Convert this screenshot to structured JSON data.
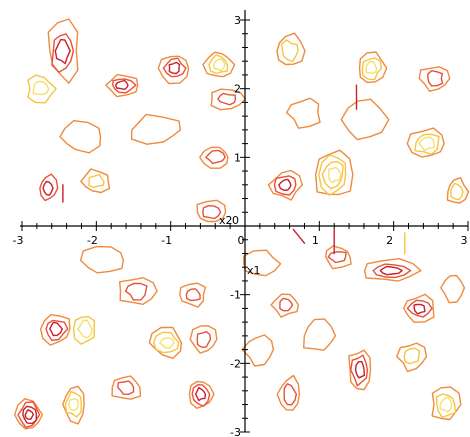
{
  "chart_data": {
    "type": "contour",
    "xlabel": "x1",
    "ylabel": "x2",
    "xlim": [
      -3,
      3
    ],
    "ylim": [
      -3,
      3
    ],
    "x_ticks": [
      -3,
      -2,
      -1,
      0,
      1,
      2,
      3
    ],
    "y_ticks": [
      -3,
      -2,
      -1,
      0,
      1,
      2,
      3
    ],
    "x_tick_labels": [
      "-3",
      "-2",
      "-1",
      "0",
      "1",
      "2",
      "3"
    ],
    "y_tick_labels": [
      "-3",
      "-2",
      "-1",
      "0",
      "1",
      "2",
      "3"
    ],
    "minor_ticks_per_unit": 5,
    "grid": false,
    "level_colors": [
      "#f08a3c",
      "#e8503a",
      "#c8202a",
      "#f5c542",
      "#f7e06a"
    ],
    "features": [
      {
        "x": -2.45,
        "y": 2.55,
        "rx": 0.22,
        "ry": 0.42,
        "levels": [
          0,
          1,
          2
        ]
      },
      {
        "x": -2.75,
        "y": 2.0,
        "rx": 0.18,
        "ry": 0.18,
        "levels": [
          3,
          4
        ]
      },
      {
        "x": -1.65,
        "y": 2.05,
        "rx": 0.22,
        "ry": 0.16,
        "levels": [
          0,
          1,
          2
        ]
      },
      {
        "x": -0.95,
        "y": 2.3,
        "rx": 0.2,
        "ry": 0.2,
        "levels": [
          0,
          1,
          2
        ]
      },
      {
        "x": -0.35,
        "y": 2.35,
        "rx": 0.18,
        "ry": 0.2,
        "levels": [
          0,
          3,
          4
        ]
      },
      {
        "x": -0.25,
        "y": 1.85,
        "rx": 0.22,
        "ry": 0.14,
        "levels": [
          0,
          1
        ]
      },
      {
        "x": 0.6,
        "y": 2.55,
        "rx": 0.2,
        "ry": 0.25,
        "levels": [
          0,
          3
        ]
      },
      {
        "x": 1.7,
        "y": 2.3,
        "rx": 0.18,
        "ry": 0.22,
        "levels": [
          0,
          3,
          4
        ]
      },
      {
        "x": 2.55,
        "y": 2.15,
        "rx": 0.2,
        "ry": 0.18,
        "levels": [
          0,
          1
        ]
      },
      {
        "x": 2.45,
        "y": 1.2,
        "rx": 0.25,
        "ry": 0.22,
        "levels": [
          0,
          3,
          4
        ]
      },
      {
        "x": 2.85,
        "y": 0.5,
        "rx": 0.15,
        "ry": 0.2,
        "levels": [
          0,
          3
        ]
      },
      {
        "x": 1.2,
        "y": 0.75,
        "rx": 0.25,
        "ry": 0.38,
        "levels": [
          0,
          3,
          3,
          4
        ]
      },
      {
        "x": 0.55,
        "y": 0.6,
        "rx": 0.2,
        "ry": 0.2,
        "levels": [
          0,
          1,
          2
        ]
      },
      {
        "x": -0.4,
        "y": 1.0,
        "rx": 0.2,
        "ry": 0.16,
        "levels": [
          0,
          1
        ]
      },
      {
        "x": -2.65,
        "y": 0.55,
        "rx": 0.12,
        "ry": 0.18,
        "levels": [
          1,
          2
        ]
      },
      {
        "x": -2.0,
        "y": 0.65,
        "rx": 0.2,
        "ry": 0.16,
        "levels": [
          0,
          3
        ]
      },
      {
        "x": -0.45,
        "y": 0.2,
        "rx": 0.2,
        "ry": 0.16,
        "levels": [
          0,
          1
        ]
      },
      {
        "x": 1.95,
        "y": -0.65,
        "rx": 0.35,
        "ry": 0.16,
        "levels": [
          0,
          1,
          2
        ]
      },
      {
        "x": 1.25,
        "y": -0.45,
        "rx": 0.2,
        "ry": 0.16,
        "levels": [
          0,
          1
        ]
      },
      {
        "x": 2.35,
        "y": -1.2,
        "rx": 0.2,
        "ry": 0.18,
        "levels": [
          0,
          1,
          2
        ]
      },
      {
        "x": -2.55,
        "y": -1.5,
        "rx": 0.2,
        "ry": 0.22,
        "levels": [
          0,
          1,
          2
        ]
      },
      {
        "x": -2.15,
        "y": -1.5,
        "rx": 0.15,
        "ry": 0.2,
        "levels": [
          3,
          4
        ]
      },
      {
        "x": -1.45,
        "y": -0.95,
        "rx": 0.25,
        "ry": 0.2,
        "levels": [
          0,
          1
        ]
      },
      {
        "x": -1.05,
        "y": -1.7,
        "rx": 0.22,
        "ry": 0.2,
        "levels": [
          0,
          3,
          4
        ]
      },
      {
        "x": -0.55,
        "y": -1.65,
        "rx": 0.16,
        "ry": 0.2,
        "levels": [
          0,
          1
        ]
      },
      {
        "x": -0.7,
        "y": -1.0,
        "rx": 0.18,
        "ry": 0.16,
        "levels": [
          0,
          1
        ]
      },
      {
        "x": 0.55,
        "y": -1.15,
        "rx": 0.18,
        "ry": 0.16,
        "levels": [
          0,
          1
        ]
      },
      {
        "x": 1.55,
        "y": -2.1,
        "rx": 0.16,
        "ry": 0.3,
        "levels": [
          0,
          1,
          2
        ]
      },
      {
        "x": 2.7,
        "y": -2.6,
        "rx": 0.2,
        "ry": 0.25,
        "levels": [
          0,
          3,
          4
        ]
      },
      {
        "x": 2.25,
        "y": -1.9,
        "rx": 0.18,
        "ry": 0.2,
        "levels": [
          0,
          3
        ]
      },
      {
        "x": -2.9,
        "y": -2.75,
        "rx": 0.18,
        "ry": 0.22,
        "levels": [
          0,
          1,
          2,
          2
        ]
      },
      {
        "x": -2.3,
        "y": -2.6,
        "rx": 0.15,
        "ry": 0.25,
        "levels": [
          0,
          3,
          4
        ]
      },
      {
        "x": -1.6,
        "y": -2.35,
        "rx": 0.2,
        "ry": 0.18,
        "levels": [
          0,
          1
        ]
      },
      {
        "x": -0.6,
        "y": -2.45,
        "rx": 0.16,
        "ry": 0.22,
        "levels": [
          0,
          1,
          2
        ]
      },
      {
        "x": 0.6,
        "y": -2.45,
        "rx": 0.15,
        "ry": 0.25,
        "levels": [
          0,
          1
        ]
      },
      {
        "x": 0.2,
        "y": -1.8,
        "rx": 0.2,
        "ry": 0.22,
        "levels": [
          0
        ]
      },
      {
        "x": -1.2,
        "y": 1.4,
        "rx": 0.35,
        "ry": 0.2,
        "levels": [
          0
        ]
      },
      {
        "x": 1.6,
        "y": 1.55,
        "rx": 0.28,
        "ry": 0.3,
        "levels": [
          0
        ]
      },
      {
        "x": -2.2,
        "y": 1.3,
        "rx": 0.3,
        "ry": 0.22,
        "levels": [
          0
        ]
      },
      {
        "x": 0.8,
        "y": 1.65,
        "rx": 0.22,
        "ry": 0.2,
        "levels": [
          0
        ]
      },
      {
        "x": -1.9,
        "y": -0.5,
        "rx": 0.3,
        "ry": 0.2,
        "levels": [
          0
        ]
      },
      {
        "x": 0.2,
        "y": -0.55,
        "rx": 0.25,
        "ry": 0.18,
        "levels": [
          0
        ]
      },
      {
        "x": 1.0,
        "y": -1.6,
        "rx": 0.22,
        "ry": 0.25,
        "levels": [
          0
        ]
      },
      {
        "x": 2.8,
        "y": -0.9,
        "rx": 0.15,
        "ry": 0.2,
        "levels": [
          0
        ]
      }
    ],
    "strokes": [
      {
        "x": -2.45,
        "y": 0.6,
        "x2": -2.45,
        "y2": 0.35,
        "level": 2
      },
      {
        "x": 0.65,
        "y": -0.05,
        "x2": 0.8,
        "y2": -0.25,
        "level": 2
      },
      {
        "x": 1.2,
        "y": -0.05,
        "x2": 1.2,
        "y2": -0.4,
        "level": 2
      },
      {
        "x": 1.5,
        "y": 2.05,
        "x2": 1.5,
        "y2": 1.7,
        "level": 2
      },
      {
        "x": 2.15,
        "y": -0.1,
        "x2": 2.15,
        "y2": -0.4,
        "level": 3
      }
    ]
  }
}
